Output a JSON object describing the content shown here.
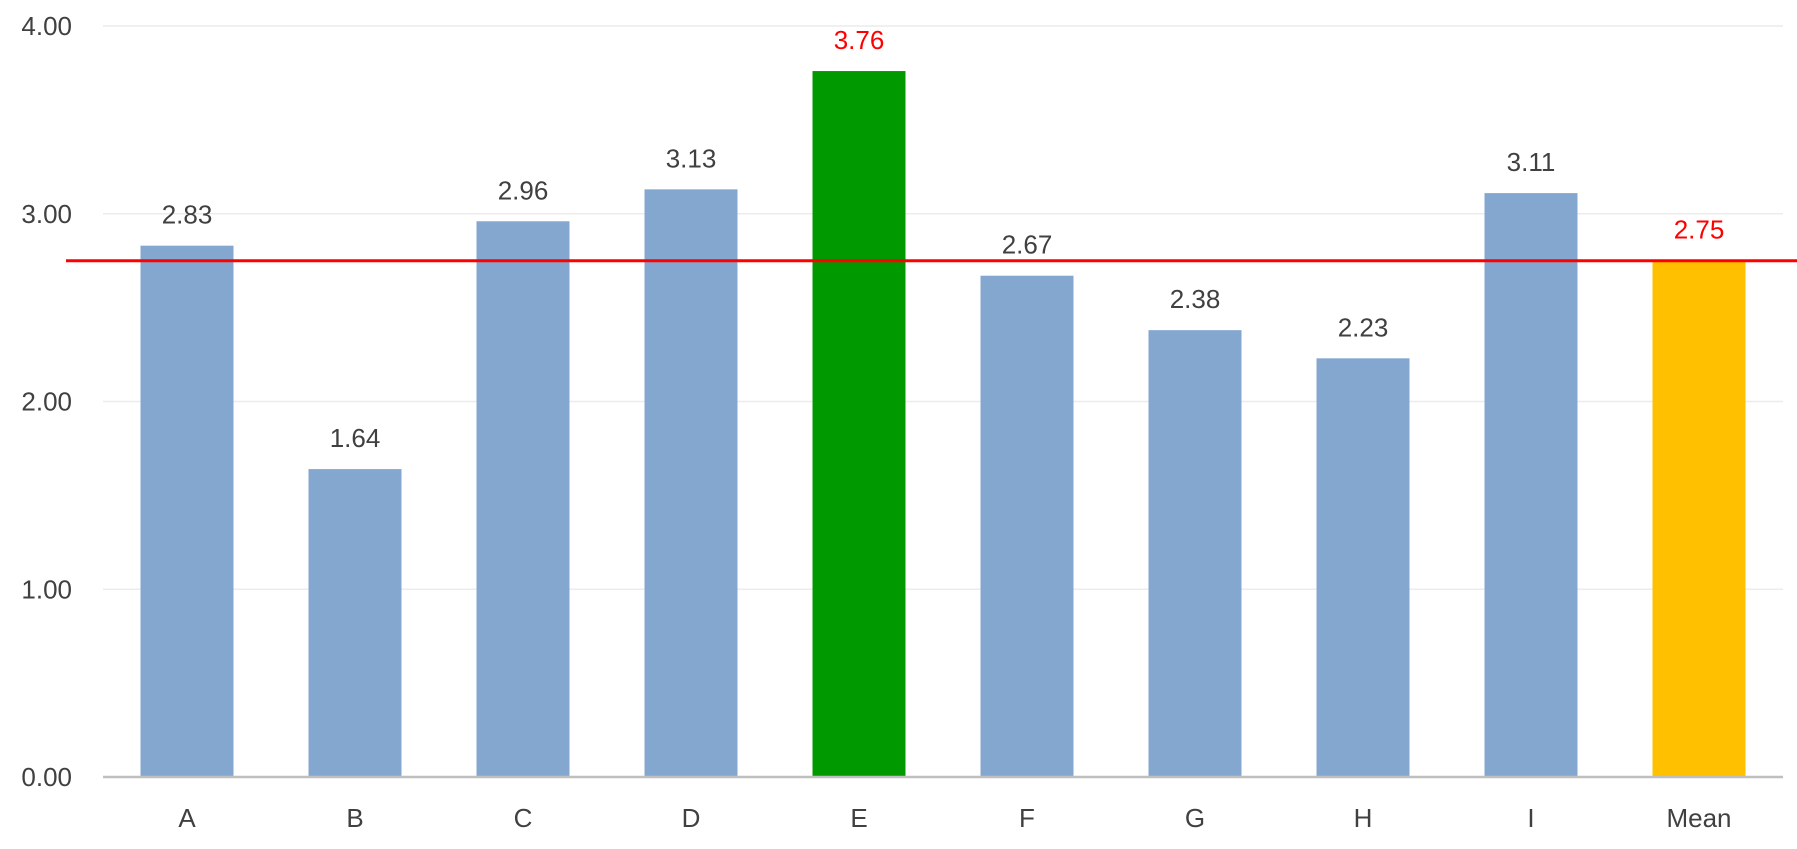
{
  "chart_data": {
    "type": "bar",
    "title": "",
    "xlabel": "",
    "ylabel": "",
    "categories": [
      "A",
      "B",
      "C",
      "D",
      "E",
      "F",
      "G",
      "H",
      "I",
      "Mean"
    ],
    "values": [
      2.83,
      1.64,
      2.96,
      3.13,
      3.76,
      2.67,
      2.38,
      2.23,
      3.11,
      2.75
    ],
    "value_labels": [
      "2.83",
      "1.64",
      "2.96",
      "3.13",
      "3.76",
      "2.67",
      "2.38",
      "2.23",
      "3.11",
      "2.75"
    ],
    "ylim": [
      0,
      4
    ],
    "yticks": [
      0,
      1,
      2,
      3,
      4
    ],
    "ytick_labels": [
      "0.00",
      "1.00",
      "2.00",
      "3.00",
      "4.00"
    ],
    "grid": true,
    "legend": "none",
    "reference_line": {
      "value": 2.75,
      "color": "#ff0000"
    },
    "colors": {
      "default_bar": "#84a7cf",
      "highlight_bar": "#009900",
      "mean_bar": "#ffc000",
      "default_label": "#404040",
      "highlight_label": "#ff0000",
      "gridline": "#ececec",
      "axis": "#bfbfbf"
    },
    "bar_colors": [
      "#84a7cf",
      "#84a7cf",
      "#84a7cf",
      "#84a7cf",
      "#009900",
      "#84a7cf",
      "#84a7cf",
      "#84a7cf",
      "#84a7cf",
      "#ffc000"
    ],
    "label_colors": [
      "#404040",
      "#404040",
      "#404040",
      "#404040",
      "#ff0000",
      "#404040",
      "#404040",
      "#404040",
      "#404040",
      "#ff0000"
    ]
  }
}
